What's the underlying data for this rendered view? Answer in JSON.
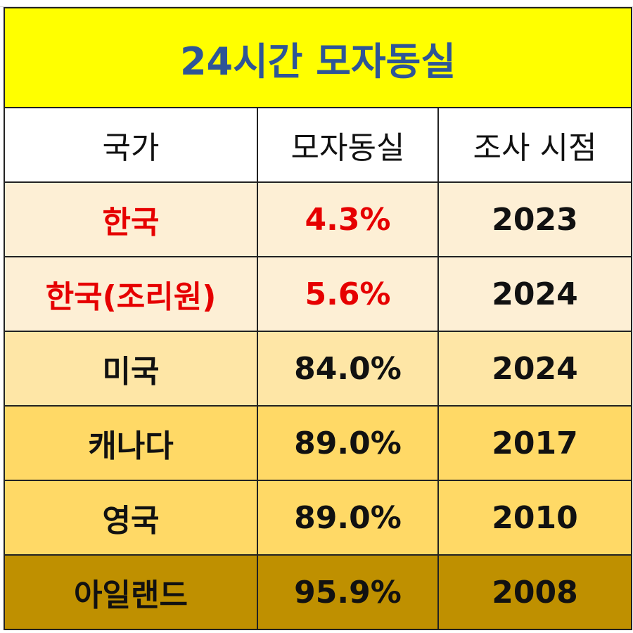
{
  "title": "24시간 모자동실",
  "table": {
    "header": [
      "국가",
      "모자동실",
      "조사 시점"
    ],
    "rows": [
      [
        "한국",
        "4.3%",
        "2023"
      ],
      [
        "한국(조리원)",
        "5.6%",
        "2024"
      ],
      [
        "미국",
        "84.0%",
        "2024"
      ],
      [
        "캐나다",
        "89.0%",
        "2017"
      ],
      [
        "영국",
        "89.0%",
        "2010"
      ],
      [
        "아일랜드",
        "95.9%",
        "2008"
      ]
    ]
  }
}
